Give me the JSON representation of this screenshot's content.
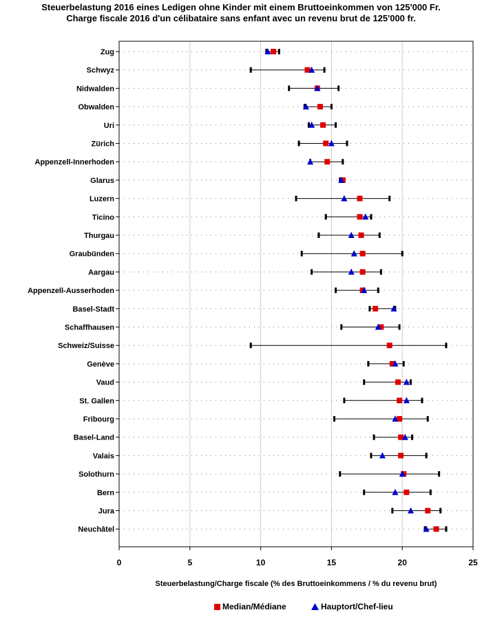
{
  "chart_data": {
    "type": "dot",
    "title": "Steuerbelastung 2016 eines Ledigen ohne Kinder mit einem Bruttoeinkommen von 125'000 Fr.",
    "subtitle": "Charge fiscale 2016 d'un célibataire sans enfant avec un revenu brut de 125'000 fr.",
    "xlabel": "Steuerbelastung/Charge fiscale (% des Bruttoeinkommens / % du revenu brut)",
    "xlim": [
      0,
      25
    ],
    "xticks": [
      0,
      5,
      10,
      15,
      20,
      25
    ],
    "grid": "vertical",
    "legend": {
      "median": "Median/Médiane",
      "capital": "Hauptort/Chef-lieu",
      "placement": "bottom"
    },
    "colors": {
      "median": "#e00000",
      "capital": "#0000d0",
      "range": "#000000",
      "grid": "#cccccc"
    },
    "rows": [
      {
        "label": "Zug",
        "min": 10.4,
        "max": 11.3,
        "median": 10.9,
        "capital": 10.5
      },
      {
        "label": "Schwyz",
        "min": 9.3,
        "max": 14.5,
        "median": 13.3,
        "capital": 13.6
      },
      {
        "label": "Nidwalden",
        "min": 12.0,
        "max": 15.5,
        "median": 14.0,
        "capital": 14.0
      },
      {
        "label": "Obwalden",
        "min": 13.1,
        "max": 15.0,
        "median": 14.2,
        "capital": 13.2
      },
      {
        "label": "Uri",
        "min": 13.4,
        "max": 15.3,
        "median": 14.4,
        "capital": 13.6
      },
      {
        "label": "Zürich",
        "min": 12.7,
        "max": 16.1,
        "median": 14.6,
        "capital": 15.0
      },
      {
        "label": "Appenzell-Innerhoden",
        "min": 13.5,
        "max": 15.8,
        "median": 14.7,
        "capital": 13.5
      },
      {
        "label": "Glarus",
        "min": 15.6,
        "max": 15.9,
        "median": 15.8,
        "capital": 15.7
      },
      {
        "label": "Luzern",
        "min": 12.5,
        "max": 19.1,
        "median": 17.0,
        "capital": 15.9
      },
      {
        "label": "Ticino",
        "min": 14.6,
        "max": 17.8,
        "median": 17.0,
        "capital": 17.4
      },
      {
        "label": "Thurgau",
        "min": 14.1,
        "max": 18.4,
        "median": 17.1,
        "capital": 16.4
      },
      {
        "label": "Graubünden",
        "min": 12.9,
        "max": 20.0,
        "median": 17.2,
        "capital": 16.6
      },
      {
        "label": "Aargau",
        "min": 13.6,
        "max": 18.5,
        "median": 17.2,
        "capital": 16.4
      },
      {
        "label": "Appenzell-Ausserhoden",
        "min": 15.3,
        "max": 18.3,
        "median": 17.2,
        "capital": 17.3
      },
      {
        "label": "Basel-Stadt",
        "min": 17.7,
        "max": 19.5,
        "median": 18.1,
        "capital": 19.4
      },
      {
        "label": "Schaffhausen",
        "min": 15.7,
        "max": 19.8,
        "median": 18.5,
        "capital": 18.3
      },
      {
        "label": "Schweiz/Suisse",
        "min": 9.3,
        "max": 23.1,
        "median": 19.1,
        "capital": null
      },
      {
        "label": "Genève",
        "min": 17.6,
        "max": 20.1,
        "median": 19.3,
        "capital": 19.5
      },
      {
        "label": "Vaud",
        "min": 17.3,
        "max": 20.6,
        "median": 19.7,
        "capital": 20.3
      },
      {
        "label": "St. Gallen",
        "min": 15.9,
        "max": 21.4,
        "median": 19.8,
        "capital": 20.3
      },
      {
        "label": "Fribourg",
        "min": 15.2,
        "max": 21.8,
        "median": 19.8,
        "capital": 19.5
      },
      {
        "label": "Basel-Land",
        "min": 18.0,
        "max": 20.7,
        "median": 19.9,
        "capital": 20.2
      },
      {
        "label": "Valais",
        "min": 17.8,
        "max": 21.7,
        "median": 19.9,
        "capital": 18.6
      },
      {
        "label": "Solothurn",
        "min": 15.6,
        "max": 22.6,
        "median": 20.1,
        "capital": 20.0
      },
      {
        "label": "Bern",
        "min": 17.3,
        "max": 22.0,
        "median": 20.3,
        "capital": 19.5
      },
      {
        "label": "Jura",
        "min": 19.3,
        "max": 22.7,
        "median": 21.8,
        "capital": 20.6
      },
      {
        "label": "Neuchâtel",
        "min": 21.6,
        "max": 23.1,
        "median": 22.4,
        "capital": 21.7
      }
    ]
  }
}
